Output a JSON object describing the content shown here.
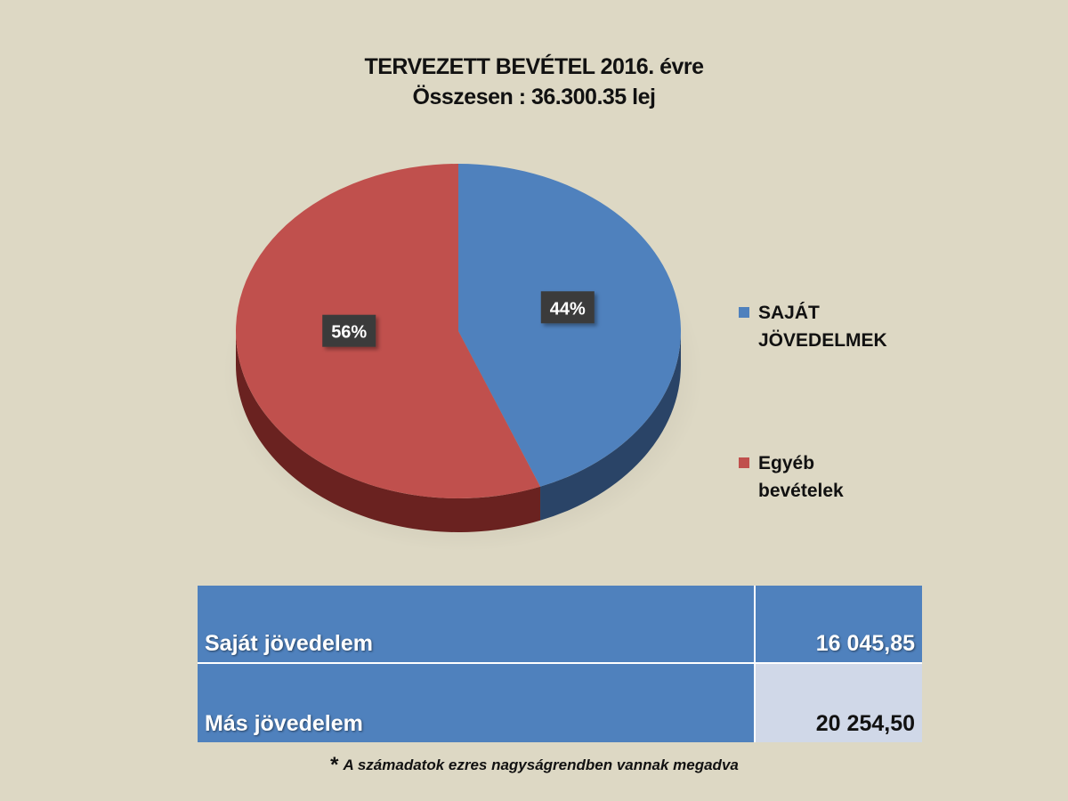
{
  "title": {
    "line1": "TERVEZETT BEVÉTEL  2016. évre",
    "line2": "Összesen : 36.300.35  lej"
  },
  "chart_data": {
    "type": "pie",
    "title": "TERVEZETT BEVÉTEL  2016. évre",
    "subtitle": "Összesen : 36.300.35  lej",
    "legend_position": "right",
    "slices": [
      {
        "name": "SAJÁT JÖVEDELMEK",
        "value": 44,
        "label": "44%",
        "color": "#4f81bd",
        "side_color": "#2a4467"
      },
      {
        "name": "Egyéb bevételek",
        "value": 56,
        "label": "56%",
        "color": "#c0504d",
        "side_color": "#6a2220"
      }
    ]
  },
  "legend": [
    {
      "label": "SAJÁT JÖVEDELMEK",
      "color": "#4f81bd"
    },
    {
      "label": "Egyéb bevételek",
      "color": "#c0504d"
    }
  ],
  "table": {
    "rows": [
      {
        "label": "Saját jövedelem",
        "value": "16 045,85"
      },
      {
        "label": "Más jövedelem",
        "value": "20 254,50"
      }
    ]
  },
  "footnote": {
    "star": "*",
    "text": "A számadatok ezres nagyságrendben vannak megadva"
  }
}
